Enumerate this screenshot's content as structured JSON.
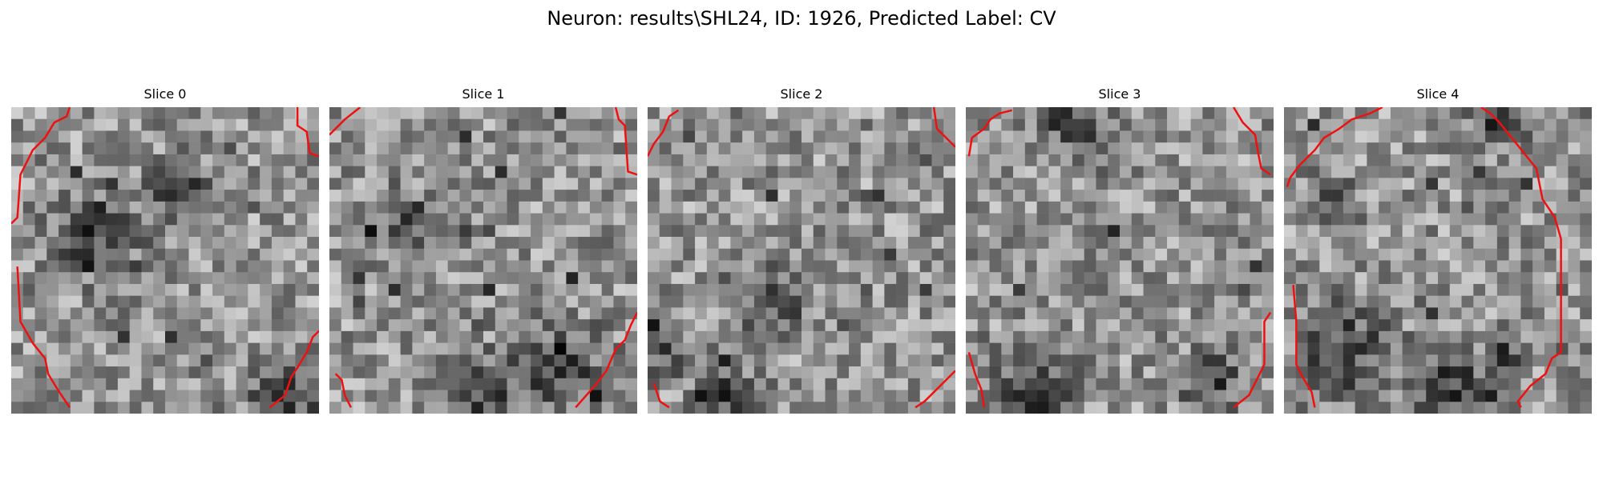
{
  "figure": {
    "title": "Neuron: results\\SHL24, ID: 1926, Predicted Label: CV"
  },
  "colors": {
    "contour": "#ee1111",
    "colormap": "gray"
  },
  "grid_size": 26,
  "panels": [
    {
      "title": "Slice 0",
      "dark_centers": [
        [
          0.28,
          0.42,
          0.13
        ],
        [
          0.55,
          0.28,
          0.1
        ],
        [
          0.9,
          0.95,
          0.12
        ]
      ]
    },
    {
      "title": "Slice 1",
      "dark_centers": [
        [
          0.25,
          0.38,
          0.1
        ],
        [
          0.75,
          0.85,
          0.14
        ],
        [
          0.5,
          0.95,
          0.12
        ]
      ]
    },
    {
      "title": "Slice 2",
      "dark_centers": [
        [
          0.4,
          0.62,
          0.11
        ],
        [
          0.05,
          0.8,
          0.08
        ],
        [
          0.25,
          0.95,
          0.1
        ]
      ]
    },
    {
      "title": "Slice 3",
      "dark_centers": [
        [
          0.35,
          0.05,
          0.12
        ],
        [
          0.2,
          0.95,
          0.14
        ],
        [
          0.8,
          0.9,
          0.1
        ]
      ]
    },
    {
      "title": "Slice 4",
      "dark_centers": [
        [
          0.2,
          0.8,
          0.15
        ],
        [
          0.55,
          0.9,
          0.13
        ],
        [
          0.15,
          0.3,
          0.08
        ],
        [
          0.7,
          0.05,
          0.08
        ]
      ]
    }
  ]
}
